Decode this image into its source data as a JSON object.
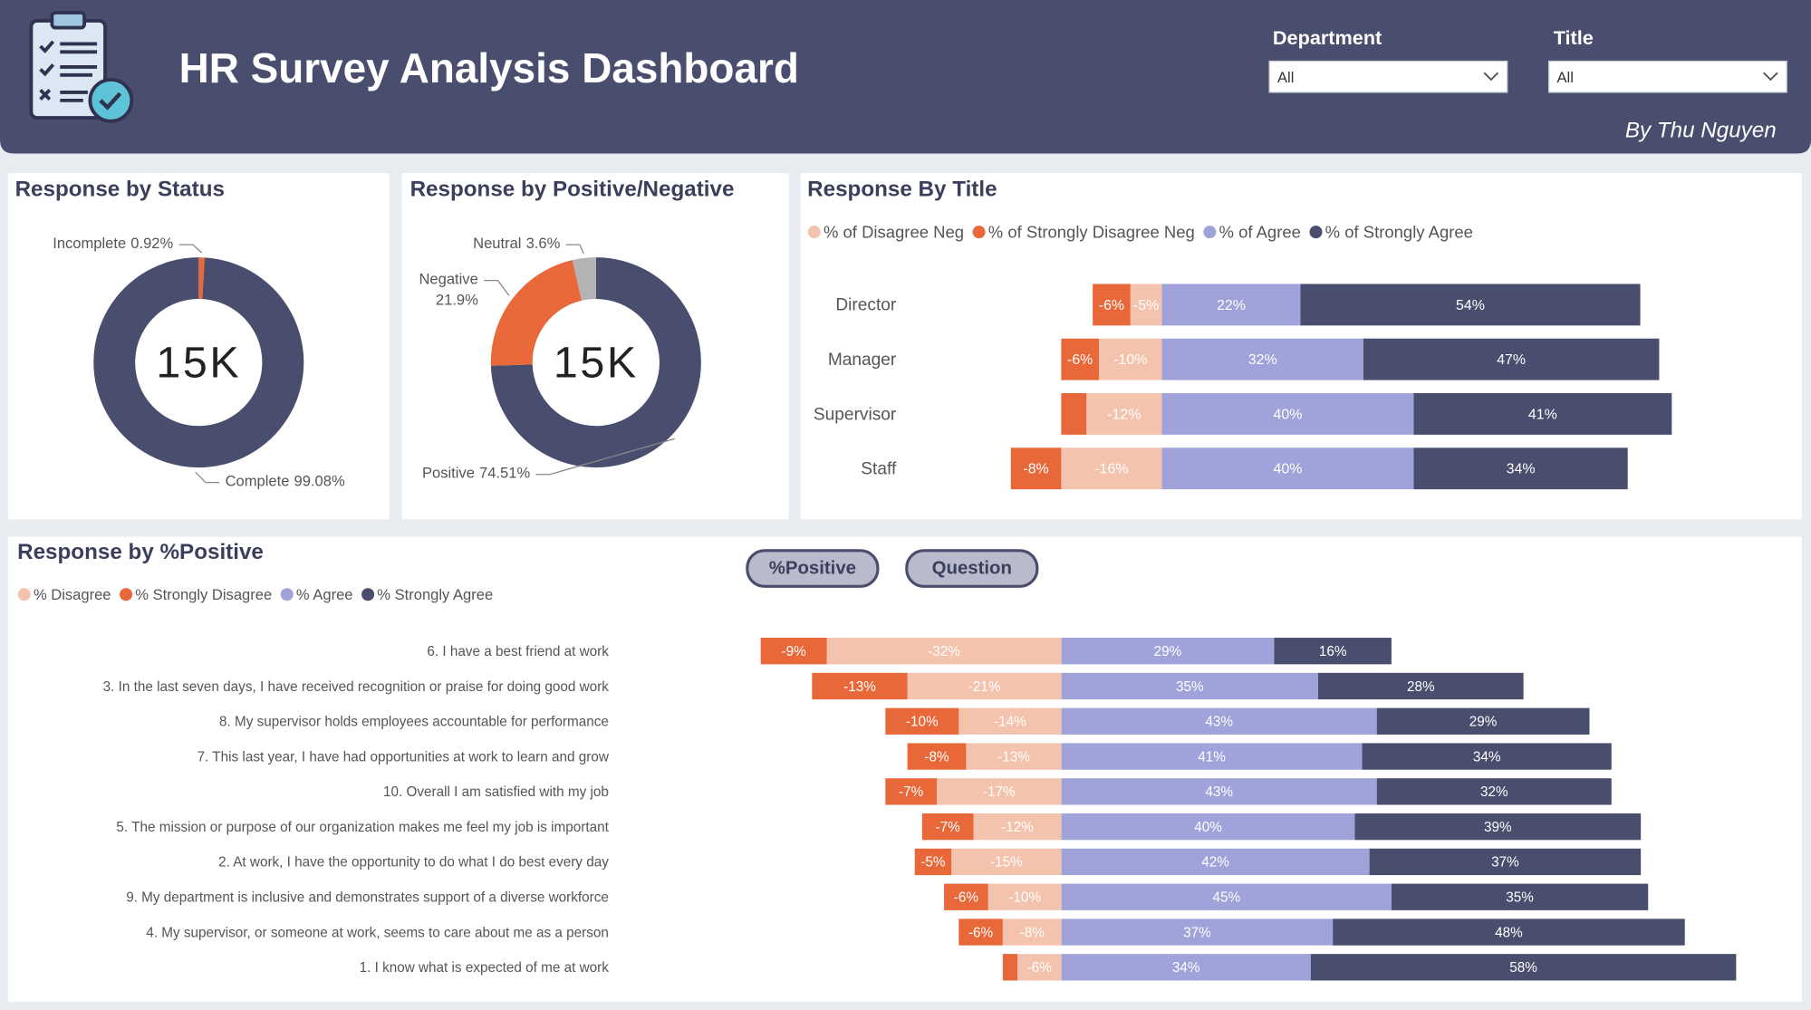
{
  "header": {
    "title": "HR Survey Analysis Dashboard",
    "author": "By Thu Nguyen"
  },
  "filters": [
    {
      "label": "Department",
      "value": "All"
    },
    {
      "label": "Title",
      "value": "All"
    }
  ],
  "buttons": [
    "%Positive",
    "Question"
  ],
  "chart_data": [
    {
      "type": "donut",
      "title": "Response by Status",
      "center_label": "15K",
      "categories": [
        "Incomplete",
        "Complete"
      ],
      "values": [
        0.92,
        99.08
      ],
      "value_labels": [
        "0.92%",
        "99.08%"
      ],
      "colors": [
        "#e8683a",
        "#4a4e6e"
      ]
    },
    {
      "type": "donut",
      "title": "Response by Positive/Negative",
      "center_label": "15K",
      "categories": [
        "Positive",
        "Negative",
        "Neutral"
      ],
      "values": [
        74.51,
        21.9,
        3.6
      ],
      "value_labels": [
        "74.51%",
        "21.9%",
        "3.6%"
      ],
      "colors": [
        "#4a4e6e",
        "#e8683a",
        "#b3b3b3"
      ]
    },
    {
      "type": "diverging-bar",
      "title": "Response By Title",
      "categories": [
        "Director",
        "Manager",
        "Supervisor",
        "Staff"
      ],
      "series": [
        {
          "name": "% of Disagree Neg",
          "color": "#f4c3ae",
          "values": [
            -5,
            -10,
            -12,
            -16
          ],
          "value_labels": [
            "-5%",
            "-10%",
            "-12%",
            "-16%"
          ]
        },
        {
          "name": "% of Strongly Disagree Neg",
          "color": "#e8683a",
          "values": [
            -6,
            -6,
            -4,
            -8
          ],
          "value_labels": [
            "-6%",
            "-6%",
            null,
            "-8%"
          ]
        },
        {
          "name": "% of Agree",
          "color": "#a0a3d9",
          "values": [
            22,
            32,
            40,
            40
          ],
          "value_labels": [
            "22%",
            "32%",
            "40%",
            "40%"
          ]
        },
        {
          "name": "% of Strongly Agree",
          "color": "#4a4e6e",
          "values": [
            54,
            47,
            41,
            34
          ],
          "value_labels": [
            "54%",
            "47%",
            "41%",
            "34%"
          ]
        }
      ]
    },
    {
      "type": "diverging-bar",
      "title": "Response by %Positive",
      "categories": [
        "6. I have a best friend at work",
        "3. In the last seven days, I have received recognition or praise for doing good work",
        "8. My supervisor holds employees accountable for performance",
        "7. This last year, I have had opportunities at work to learn and grow",
        "10. Overall I am satisfied with my job",
        "5. The mission or purpose of our organization makes me feel my job is important",
        "2. At work, I have the opportunity to do what I do best every day",
        "9. My department is inclusive and demonstrates support of a diverse workforce",
        "4. My supervisor, or someone at work, seems to care about me as a person",
        "1. I know what is expected of me at work"
      ],
      "series": [
        {
          "name": "% Disagree",
          "color": "#f4c3ae",
          "values": [
            -32,
            -21,
            -14,
            -13,
            -17,
            -12,
            -15,
            -10,
            -8,
            -6
          ],
          "value_labels": [
            "-32%",
            "-21%",
            "-14%",
            "-13%",
            "-17%",
            "-12%",
            "-15%",
            "-10%",
            "-8%",
            "-6%"
          ]
        },
        {
          "name": "% Strongly Disagree",
          "color": "#e8683a",
          "values": [
            -9,
            -13,
            -10,
            -8,
            -7,
            -7,
            -5,
            -6,
            -6,
            -2
          ],
          "value_labels": [
            "-9%",
            "-13%",
            "-10%",
            "-8%",
            "-7%",
            "-7%",
            "-5%",
            "-6%",
            "-6%",
            null
          ]
        },
        {
          "name": "% Agree",
          "color": "#a0a3d9",
          "values": [
            29,
            35,
            43,
            41,
            43,
            40,
            42,
            45,
            37,
            34
          ],
          "value_labels": [
            "29%",
            "35%",
            "43%",
            "41%",
            "43%",
            "40%",
            "42%",
            "45%",
            "37%",
            "34%"
          ]
        },
        {
          "name": "% Strongly Agree",
          "color": "#4a4e6e",
          "values": [
            16,
            28,
            29,
            34,
            32,
            39,
            37,
            35,
            48,
            58
          ],
          "value_labels": [
            "16%",
            "28%",
            "29%",
            "34%",
            "32%",
            "39%",
            "37%",
            "35%",
            "48%",
            "58%"
          ]
        }
      ]
    }
  ]
}
